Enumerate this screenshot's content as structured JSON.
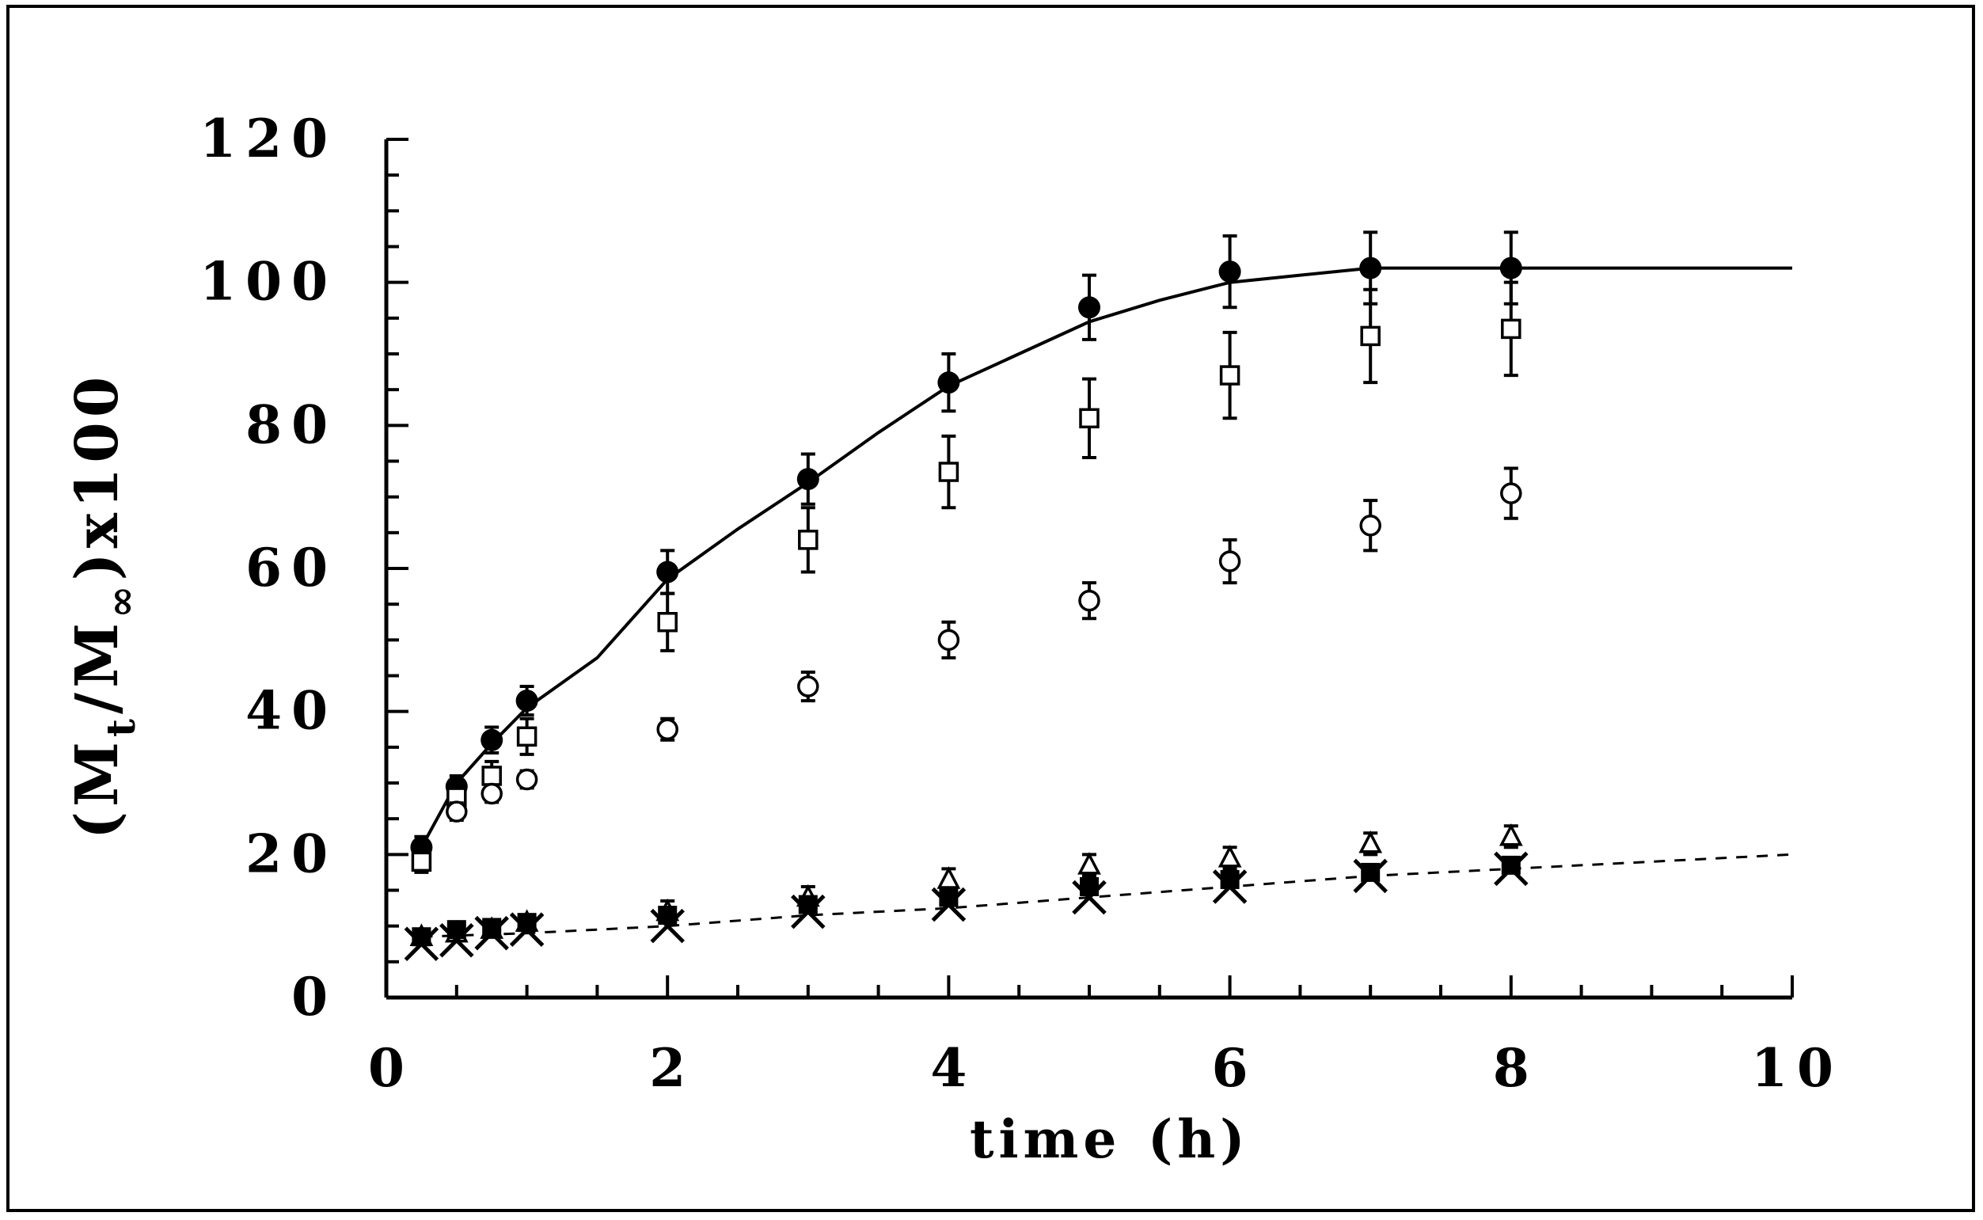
{
  "chart_data": {
    "type": "scatter",
    "title": "",
    "xlabel": "time",
    "xlabel_unit": "(h)",
    "ylabel": "(Mₜ/M∞) x100",
    "ylabel_parts": {
      "open": "(M",
      "sub_t": "t",
      "mid": "/M",
      "sub_inf": "∞",
      "close": ")x100"
    },
    "xlim": [
      0,
      10
    ],
    "ylim": [
      0,
      120
    ],
    "x_ticks": [
      0,
      2,
      4,
      6,
      8,
      10
    ],
    "x_tick_labels": [
      "0",
      "2",
      "4",
      "6",
      "8",
      "10"
    ],
    "y_ticks": [
      0,
      20,
      40,
      60,
      80,
      100,
      120
    ],
    "y_tick_labels": [
      "0",
      "20",
      "40",
      "60",
      "80",
      "100",
      "120"
    ],
    "series": [
      {
        "name": "filled-circle",
        "marker": "filled-circle",
        "x": [
          0.25,
          0.5,
          0.75,
          1,
          2,
          3,
          4,
          5,
          6,
          7,
          8
        ],
        "y": [
          21,
          29.5,
          36,
          41.5,
          59.5,
          72.5,
          86,
          96.5,
          101.5,
          102,
          102
        ],
        "err": [
          1.5,
          1.5,
          1.8,
          2,
          3,
          3.5,
          4,
          4.5,
          5,
          5,
          5
        ]
      },
      {
        "name": "open-square",
        "marker": "open-square",
        "x": [
          0.25,
          0.5,
          0.75,
          1,
          2,
          3,
          4,
          5,
          6,
          7,
          8
        ],
        "y": [
          19,
          28,
          31,
          36.5,
          52.5,
          64,
          73.5,
          81,
          87,
          92.5,
          93.5
        ],
        "err": [
          1.5,
          1.5,
          2,
          2.5,
          4,
          4.5,
          5,
          5.5,
          6,
          6.5,
          6.5
        ]
      },
      {
        "name": "open-circle",
        "marker": "open-circle",
        "x": [
          0.5,
          0.75,
          1,
          2,
          3,
          4,
          5,
          6,
          7,
          8
        ],
        "y": [
          26,
          28.5,
          30.5,
          37.5,
          43.5,
          50,
          55.5,
          61,
          66,
          70.5
        ],
        "err": [
          1.2,
          1.2,
          1.2,
          1.5,
          2,
          2.5,
          2.5,
          3,
          3.5,
          3.5
        ]
      },
      {
        "name": "open-triangle",
        "marker": "open-triangle",
        "x": [
          0.25,
          0.5,
          0.75,
          1,
          2,
          3,
          4,
          5,
          6,
          7,
          8
        ],
        "y": [
          8.5,
          9,
          9.5,
          10.5,
          12,
          14,
          16.5,
          18.5,
          19.5,
          21.5,
          22.5
        ],
        "err": [
          0.8,
          0.8,
          1,
          1,
          1.5,
          1.5,
          1.5,
          1.5,
          1.5,
          1.5,
          1.5
        ]
      },
      {
        "name": "filled-square",
        "marker": "filled-square",
        "x": [
          0.25,
          0.5,
          0.75,
          1,
          2,
          3,
          4,
          5,
          6,
          7,
          8
        ],
        "y": [
          8.5,
          9.5,
          9.8,
          10.5,
          11.5,
          13,
          14,
          15.5,
          16.5,
          17.5,
          18.5
        ],
        "err": [
          0,
          0,
          0,
          0,
          0,
          0,
          0,
          0,
          0,
          0,
          0
        ]
      },
      {
        "name": "cross",
        "marker": "cross",
        "x": [
          0.25,
          0.5,
          0.75,
          1,
          2,
          3,
          4,
          5,
          6,
          7,
          8
        ],
        "y": [
          7.5,
          8,
          9,
          9.5,
          10,
          12,
          13,
          14,
          15.5,
          17,
          18
        ],
        "err": [
          0,
          0,
          0,
          0,
          0,
          0,
          0,
          0,
          0,
          0,
          0
        ]
      }
    ],
    "fit_lines": [
      {
        "name": "solid-fit",
        "style": "solid",
        "x": [
          0.25,
          0.5,
          0.75,
          1,
          1.25,
          1.5,
          2,
          2.5,
          3,
          3.5,
          4,
          4.5,
          5,
          5.5,
          6,
          6.5,
          7,
          8,
          9,
          10
        ],
        "y": [
          21,
          30,
          35.5,
          40.5,
          44,
          47.5,
          58.5,
          65.5,
          72,
          79,
          85.5,
          90,
          94.5,
          97.5,
          100,
          101,
          102,
          102,
          102,
          102
        ]
      },
      {
        "name": "dashed-fit",
        "style": "dashed",
        "x": [
          0.25,
          1,
          2,
          3,
          4,
          5,
          6,
          7,
          8,
          9,
          10
        ],
        "y": [
          8.5,
          9,
          10,
          11.5,
          12.5,
          14,
          15.5,
          17,
          18,
          19,
          20
        ]
      }
    ]
  }
}
